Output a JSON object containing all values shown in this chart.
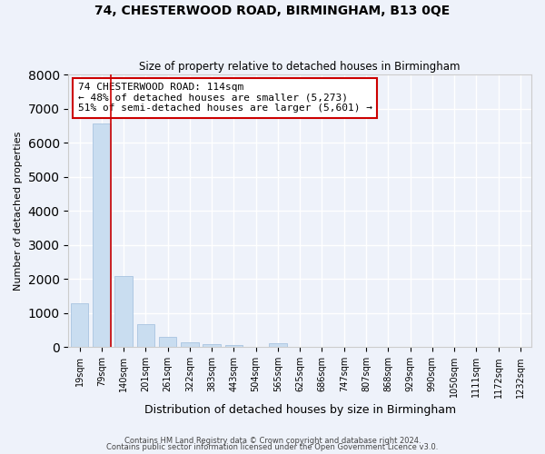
{
  "title": "74, CHESTERWOOD ROAD, BIRMINGHAM, B13 0QE",
  "subtitle": "Size of property relative to detached houses in Birmingham",
  "xlabel": "Distribution of detached houses by size in Birmingham",
  "ylabel": "Number of detached properties",
  "categories": [
    "19sqm",
    "79sqm",
    "140sqm",
    "201sqm",
    "261sqm",
    "322sqm",
    "383sqm",
    "443sqm",
    "504sqm",
    "565sqm",
    "625sqm",
    "686sqm",
    "747sqm",
    "807sqm",
    "868sqm",
    "929sqm",
    "990sqm",
    "1050sqm",
    "1111sqm",
    "1172sqm",
    "1232sqm"
  ],
  "values": [
    1300,
    6550,
    2080,
    680,
    290,
    130,
    90,
    70,
    0,
    115,
    0,
    0,
    0,
    0,
    0,
    0,
    0,
    0,
    0,
    0,
    0
  ],
  "bar_color": "#c9ddf0",
  "bar_edge_color": "#a8c4e0",
  "vline_color": "#cc0000",
  "annotation_text": "74 CHESTERWOOD ROAD: 114sqm\n← 48% of detached houses are smaller (5,273)\n51% of semi-detached houses are larger (5,601) →",
  "annotation_box_color": "white",
  "annotation_box_edge": "#cc0000",
  "ylim": [
    0,
    8000
  ],
  "yticks": [
    0,
    1000,
    2000,
    3000,
    4000,
    5000,
    6000,
    7000,
    8000
  ],
  "background_color": "#eef2fa",
  "grid_color": "white",
  "footer1": "Contains HM Land Registry data © Crown copyright and database right 2024.",
  "footer2": "Contains public sector information licensed under the Open Government Licence v3.0."
}
